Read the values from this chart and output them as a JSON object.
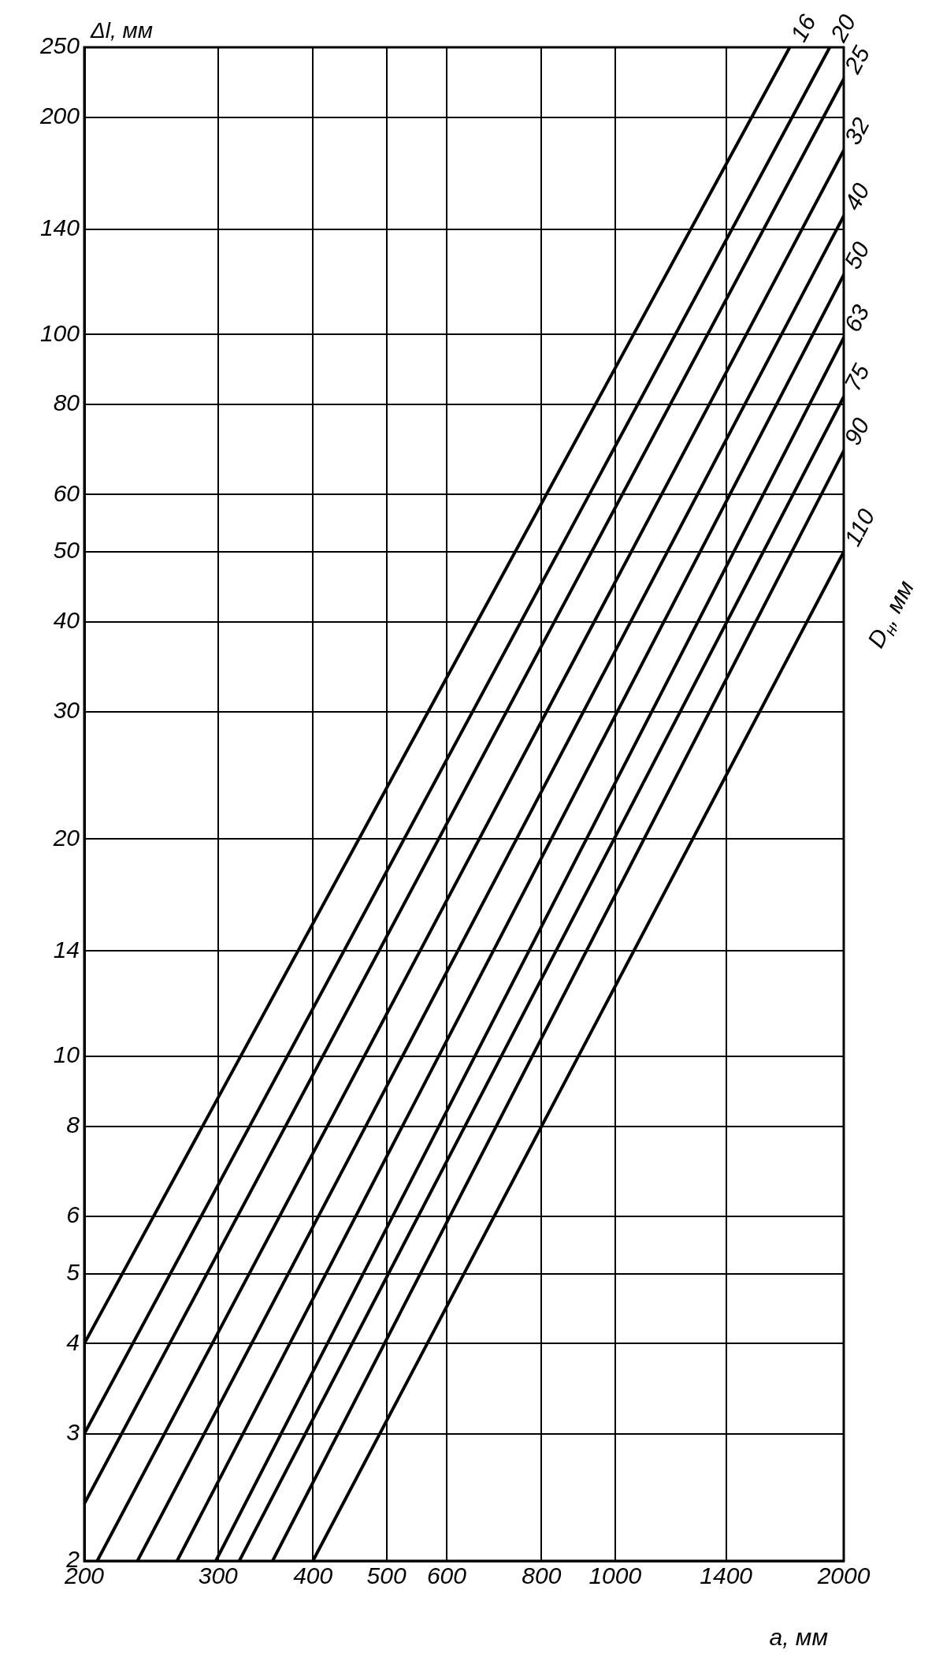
{
  "chart_data": {
    "type": "line",
    "xlabel": "a, мм",
    "ylabel": "Δl, мм",
    "legend_title": "D$_{н}$, мм",
    "log": "xy",
    "grid": true,
    "legend": false,
    "marker": "none",
    "line_style": "solid",
    "xlim": [
      200,
      2000
    ],
    "ylim": [
      2,
      250
    ],
    "xticks": [
      200,
      300,
      400,
      500,
      600,
      800,
      1000,
      1400,
      2000
    ],
    "yticks": [
      2,
      3,
      4,
      5,
      6,
      8,
      10,
      14,
      20,
      30,
      40,
      50,
      60,
      80,
      100,
      140,
      200,
      250
    ],
    "series": [
      {
        "name": "16",
        "color": "#000000",
        "x": [
          200,
          1698
        ],
        "values": [
          4,
          250
        ]
      },
      {
        "name": "20",
        "color": "#000000",
        "x": [
          200,
          1917
        ],
        "values": [
          3,
          250
        ]
      },
      {
        "name": "25",
        "color": "#000000",
        "x": [
          200,
          2000
        ],
        "values": [
          2.4,
          226
        ]
      },
      {
        "name": "32",
        "color": "#000000",
        "x": [
          208,
          2000
        ],
        "values": [
          2,
          180
        ]
      },
      {
        "name": "40",
        "color": "#000000",
        "x": [
          235,
          2000
        ],
        "values": [
          2,
          146
        ]
      },
      {
        "name": "50",
        "color": "#000000",
        "x": [
          265,
          2000
        ],
        "values": [
          2,
          121
        ]
      },
      {
        "name": "63",
        "color": "#000000",
        "x": [
          298,
          2000
        ],
        "values": [
          2,
          99
        ]
      },
      {
        "name": "75",
        "color": "#000000",
        "x": [
          320,
          2000
        ],
        "values": [
          2,
          82
        ]
      },
      {
        "name": "90",
        "color": "#000000",
        "x": [
          354,
          2000
        ],
        "values": [
          2,
          69
        ]
      },
      {
        "name": "110",
        "color": "#000000",
        "x": [
          400,
          2000
        ],
        "values": [
          2,
          50
        ]
      }
    ]
  }
}
